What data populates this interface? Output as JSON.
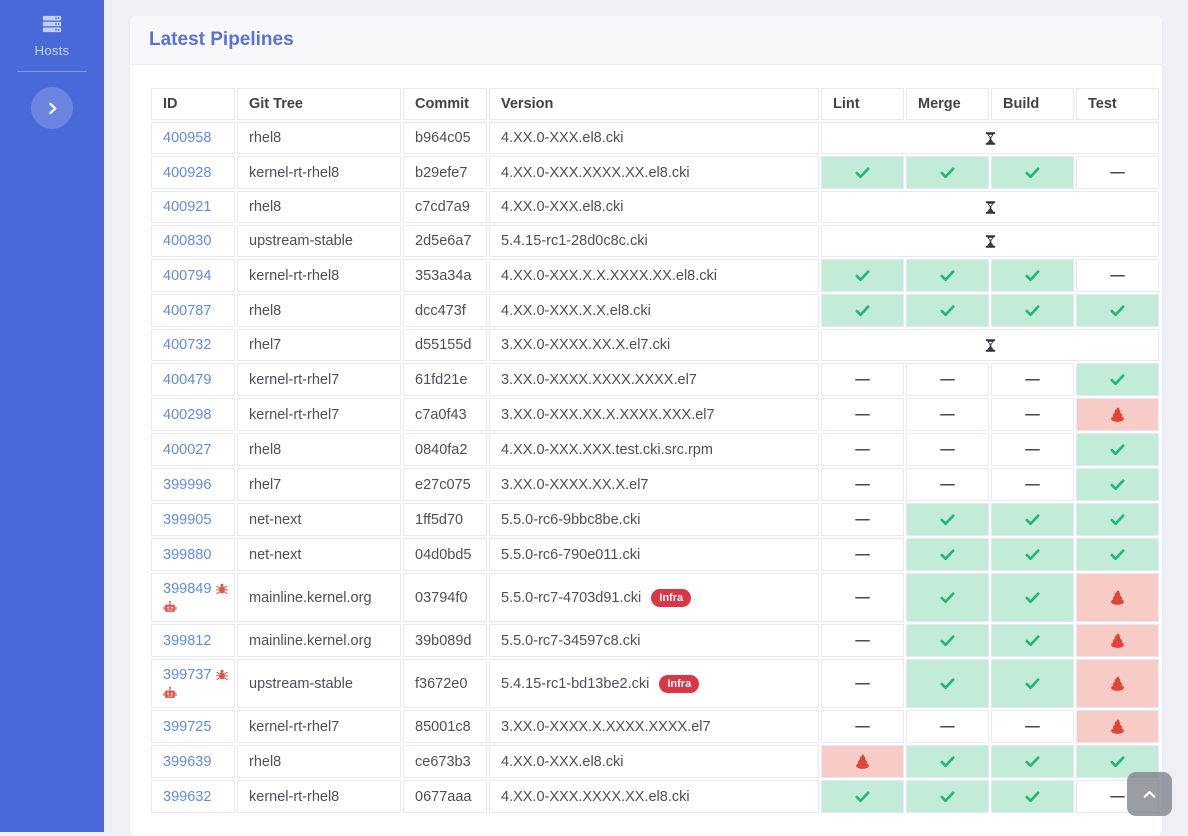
{
  "sidebar": {
    "nav_items": [
      {
        "label": "Hosts",
        "icon": "server-icon"
      }
    ],
    "expand_button_icon": "chevron-right-icon"
  },
  "card": {
    "title": "Latest Pipelines"
  },
  "table": {
    "columns": [
      "ID",
      "Git Tree",
      "Commit",
      "Version",
      "Lint",
      "Merge",
      "Build",
      "Test"
    ],
    "dash_glyph": "—",
    "infra_badge_label": "Infra",
    "status_icon_map": {
      "ok": "check-icon",
      "fail": "poo-icon",
      "pending": "hourglass-icon"
    },
    "rows": [
      {
        "id": "400958",
        "git_tree": "rhel8",
        "commit": "b964c05",
        "version": "4.XX.0-XXX.el8.cki",
        "infra": false,
        "id_icons": [],
        "statuses": "pending"
      },
      {
        "id": "400928",
        "git_tree": "kernel-rt-rhel8",
        "commit": "b29efe7",
        "version": "4.XX.0-XXX.XXXX.XX.el8.cki",
        "infra": false,
        "id_icons": [],
        "statuses": [
          "ok",
          "ok",
          "ok",
          "none"
        ]
      },
      {
        "id": "400921",
        "git_tree": "rhel8",
        "commit": "c7cd7a9",
        "version": "4.XX.0-XXX.el8.cki",
        "infra": false,
        "id_icons": [],
        "statuses": "pending"
      },
      {
        "id": "400830",
        "git_tree": "upstream-stable",
        "commit": "2d5e6a7",
        "version": "5.4.15-rc1-28d0c8c.cki",
        "infra": false,
        "id_icons": [],
        "statuses": "pending"
      },
      {
        "id": "400794",
        "git_tree": "kernel-rt-rhel8",
        "commit": "353a34a",
        "version": "4.XX.0-XXX.X.X.XXXX.XX.el8.cki",
        "infra": false,
        "id_icons": [],
        "statuses": [
          "ok",
          "ok",
          "ok",
          "none"
        ]
      },
      {
        "id": "400787",
        "git_tree": "rhel8",
        "commit": "dcc473f",
        "version": "4.XX.0-XXX.X.X.el8.cki",
        "infra": false,
        "id_icons": [],
        "statuses": [
          "ok",
          "ok",
          "ok",
          "ok"
        ]
      },
      {
        "id": "400732",
        "git_tree": "rhel7",
        "commit": "d55155d",
        "version": "3.XX.0-XXXX.XX.X.el7.cki",
        "infra": false,
        "id_icons": [],
        "statuses": "pending"
      },
      {
        "id": "400479",
        "git_tree": "kernel-rt-rhel7",
        "commit": "61fd21e",
        "version": "3.XX.0-XXXX.XXXX.XXXX.el7",
        "infra": false,
        "id_icons": [],
        "statuses": [
          "none",
          "none",
          "none",
          "ok"
        ]
      },
      {
        "id": "400298",
        "git_tree": "kernel-rt-rhel7",
        "commit": "c7a0f43",
        "version": "3.XX.0-XXX.XX.X.XXXX.XXX.el7",
        "infra": false,
        "id_icons": [],
        "statuses": [
          "none",
          "none",
          "none",
          "fail"
        ]
      },
      {
        "id": "400027",
        "git_tree": "rhel8",
        "commit": "0840fa2",
        "version": "4.XX.0-XXX.XXX.test.cki.src.rpm",
        "infra": false,
        "id_icons": [],
        "statuses": [
          "none",
          "none",
          "none",
          "ok"
        ]
      },
      {
        "id": "399996",
        "git_tree": "rhel7",
        "commit": "e27c075",
        "version": "3.XX.0-XXXX.XX.X.el7",
        "infra": false,
        "id_icons": [],
        "statuses": [
          "none",
          "none",
          "none",
          "ok"
        ]
      },
      {
        "id": "399905",
        "git_tree": "net-next",
        "commit": "1ff5d70",
        "version": "5.5.0-rc6-9bbc8be.cki",
        "infra": false,
        "id_icons": [],
        "statuses": [
          "none",
          "ok",
          "ok",
          "ok"
        ]
      },
      {
        "id": "399880",
        "git_tree": "net-next",
        "commit": "04d0bd5",
        "version": "5.5.0-rc6-790e011.cki",
        "infra": false,
        "id_icons": [],
        "statuses": [
          "none",
          "ok",
          "ok",
          "ok"
        ]
      },
      {
        "id": "399849",
        "git_tree": "mainline.kernel.org",
        "commit": "03794f0",
        "version": "5.5.0-rc7-4703d91.cki",
        "infra": true,
        "id_icons": [
          "bug",
          "robot"
        ],
        "statuses": [
          "none",
          "ok",
          "ok",
          "fail"
        ]
      },
      {
        "id": "399812",
        "git_tree": "mainline.kernel.org",
        "commit": "39b089d",
        "version": "5.5.0-rc7-34597c8.cki",
        "infra": false,
        "id_icons": [],
        "statuses": [
          "none",
          "ok",
          "ok",
          "fail"
        ]
      },
      {
        "id": "399737",
        "git_tree": "upstream-stable",
        "commit": "f3672e0",
        "version": "5.4.15-rc1-bd13be2.cki",
        "infra": true,
        "id_icons": [
          "bug",
          "robot"
        ],
        "statuses": [
          "none",
          "ok",
          "ok",
          "fail"
        ]
      },
      {
        "id": "399725",
        "git_tree": "kernel-rt-rhel7",
        "commit": "85001c8",
        "version": "3.XX.0-XXXX.X.XXXX.XXXX.el7",
        "infra": false,
        "id_icons": [],
        "statuses": [
          "none",
          "none",
          "none",
          "fail"
        ]
      },
      {
        "id": "399639",
        "git_tree": "rhel8",
        "commit": "ce673b3",
        "version": "4.XX.0-XXX.el8.cki",
        "infra": false,
        "id_icons": [],
        "statuses": [
          "fail",
          "ok",
          "ok",
          "ok"
        ]
      },
      {
        "id": "399632",
        "git_tree": "kernel-rt-rhel8",
        "commit": "0677aaa",
        "version": "4.XX.0-XXX.XXXX.XX.el8.cki",
        "infra": false,
        "id_icons": [],
        "statuses": [
          "ok",
          "ok",
          "ok",
          "none"
        ]
      }
    ]
  },
  "scroll_top_button": {
    "icon": "chevron-up-icon"
  },
  "colors": {
    "sidebar_bg": "#4a69d9",
    "page_bg": "#eef0f6",
    "card_header_bg": "#f8f8fb",
    "title": "#5a71d8",
    "link": "#638ae2",
    "status_pass_bg": "#c3ecd8",
    "status_pass_icon": "#23b873",
    "status_fail_bg": "#f7ccc7",
    "status_fail_icon": "#e2443a",
    "pending_icon": "#2e3338",
    "infra_badge_bg": "#dc3545",
    "scroll_button_bg": "rgba(125,130,138,0.78)"
  }
}
